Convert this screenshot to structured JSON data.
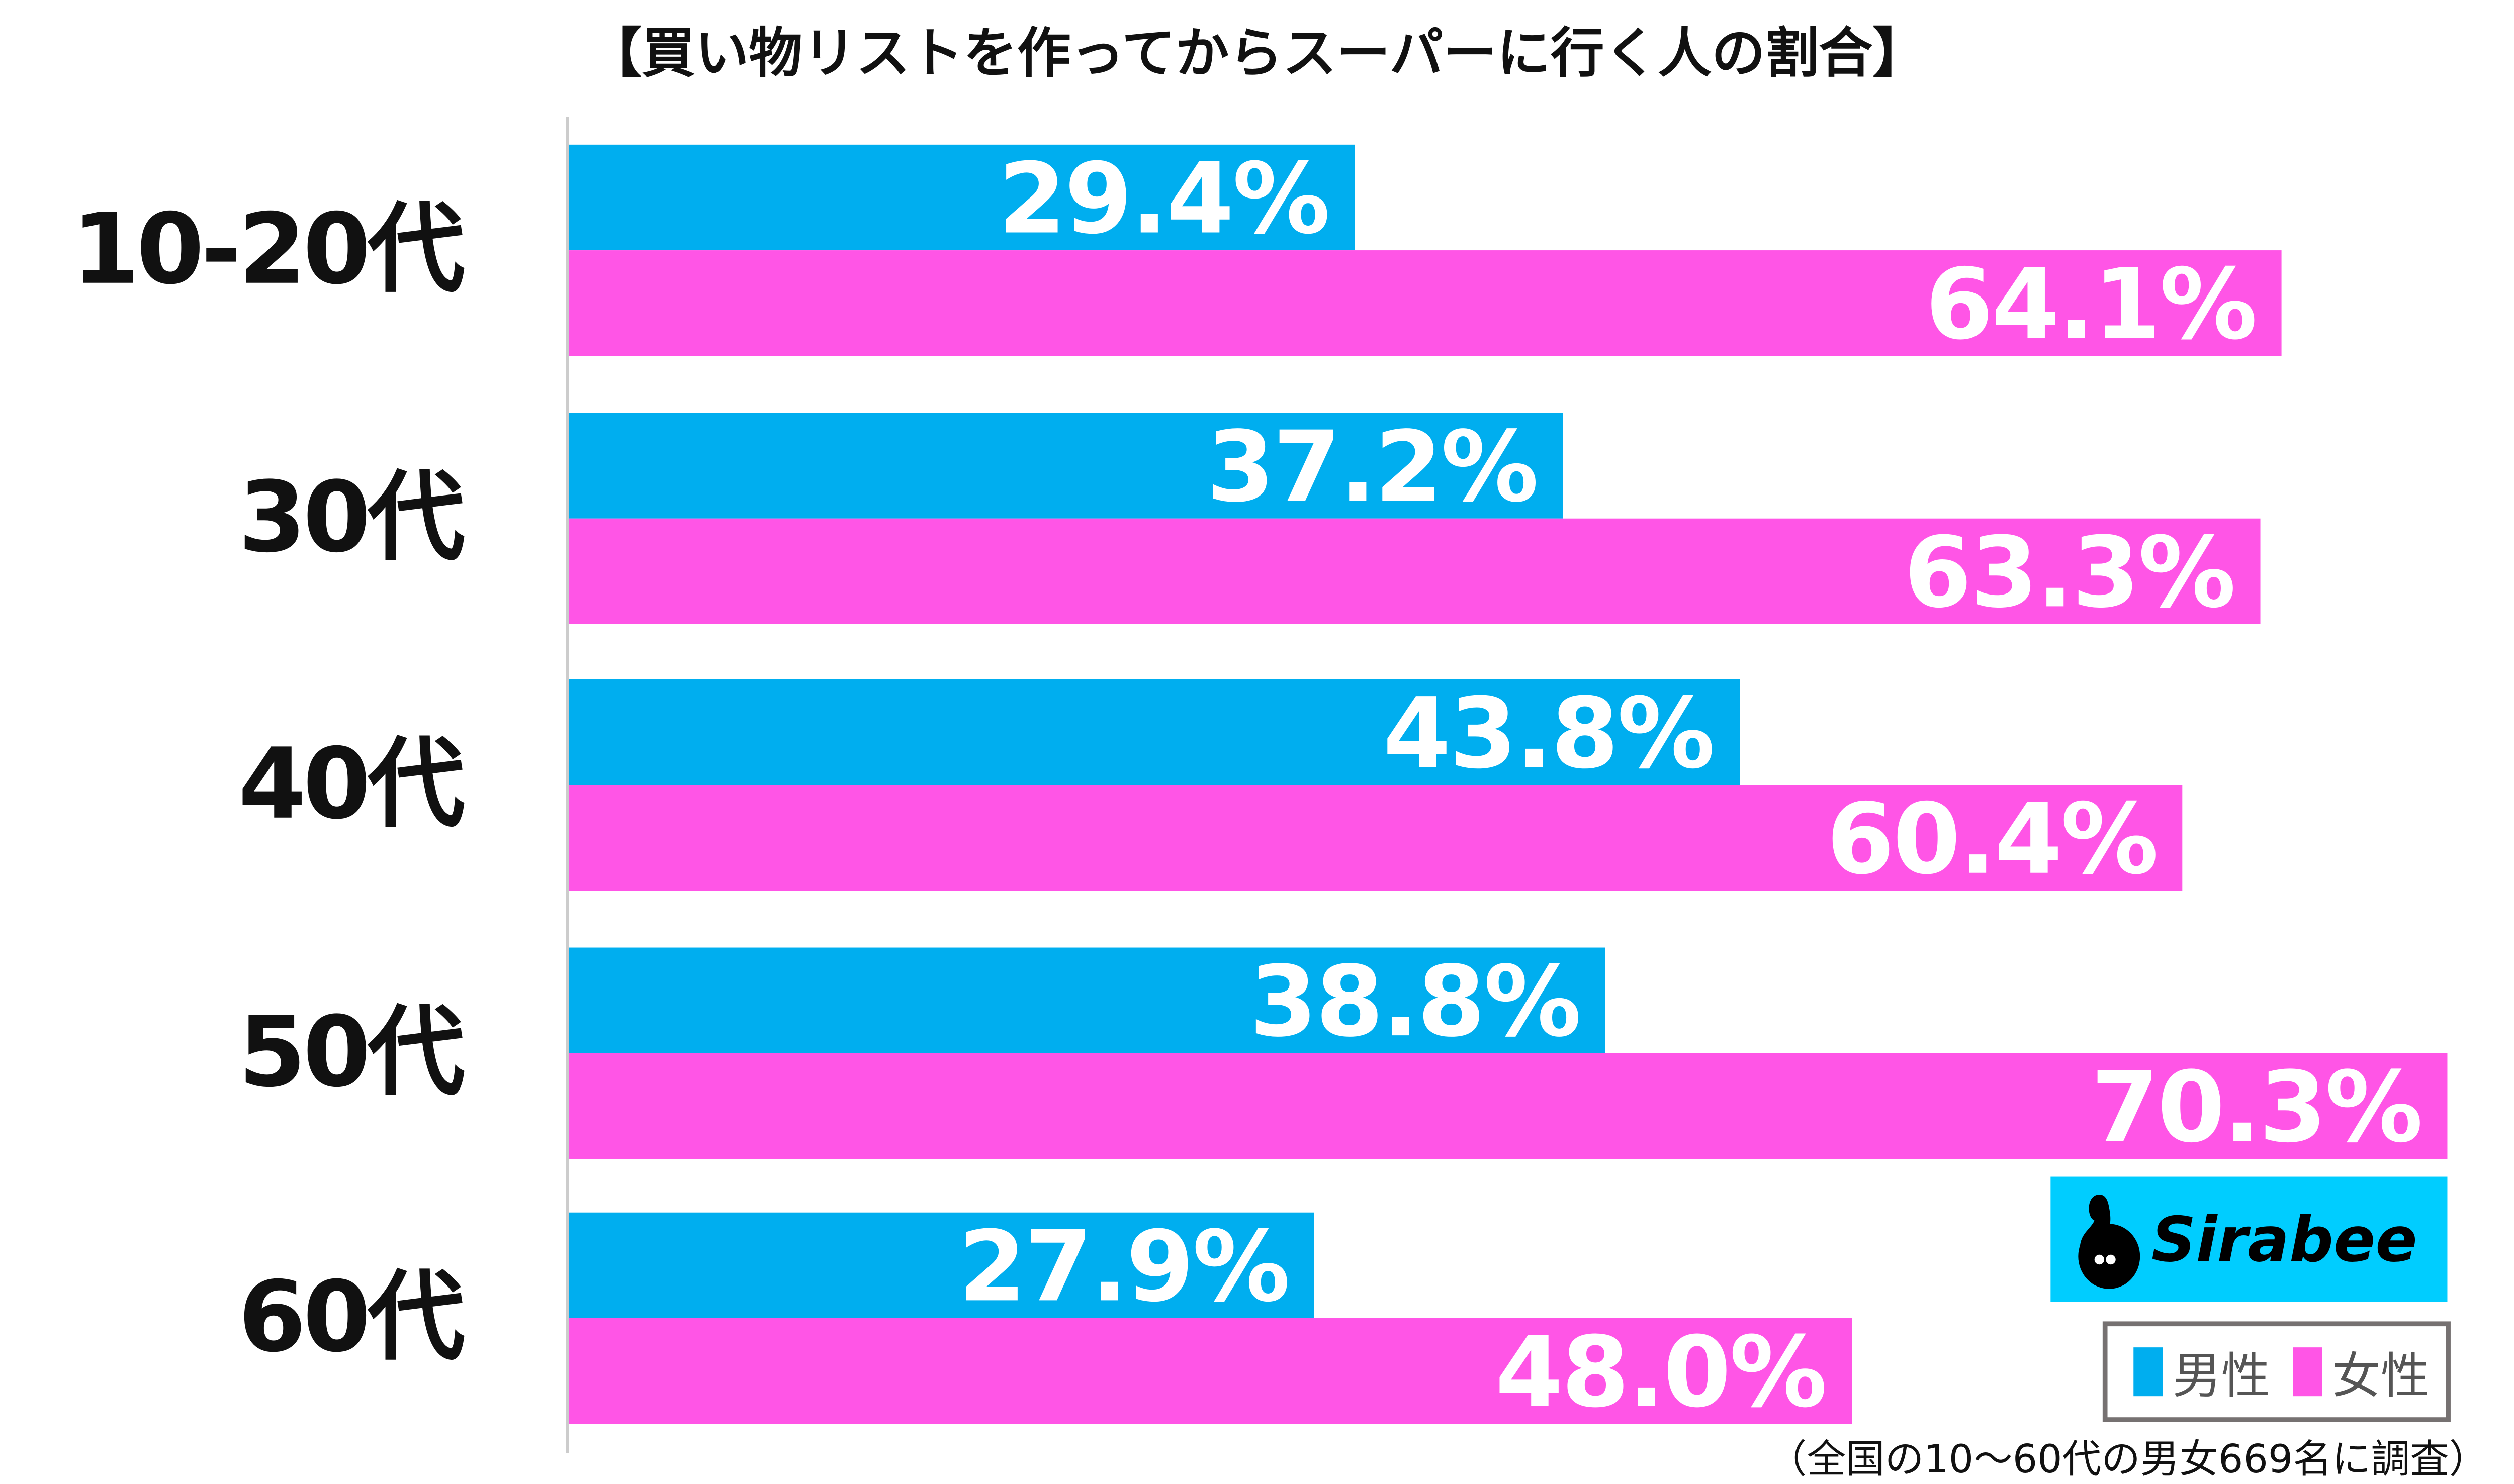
{
  "chart_data": {
    "type": "bar",
    "orientation": "horizontal",
    "title": "【買い物リストを作ってからスーパーに行く人の割合】",
    "categories": [
      "10-20代",
      "30代",
      "40代",
      "50代",
      "60代"
    ],
    "series": [
      {
        "name": "男性",
        "color": "#00aeef",
        "values": [
          29.4,
          37.2,
          43.8,
          38.8,
          27.9
        ],
        "labels": [
          "29.4%",
          "37.2%",
          "43.8%",
          "38.8%",
          "27.9%"
        ]
      },
      {
        "name": "女性",
        "color": "#ff55e6",
        "values": [
          64.1,
          63.3,
          60.4,
          70.3,
          48.0
        ],
        "labels": [
          "64.1%",
          "63.3%",
          "60.4%",
          "70.3%",
          "48.0%"
        ]
      }
    ],
    "xlim": [
      0,
      70.3
    ],
    "legend": {
      "placement": "bottom-right",
      "items": [
        "男性",
        "女性"
      ]
    },
    "footnote": "（全国の10〜60代の男女669名に調査）"
  },
  "logo": {
    "text": "Sirabee",
    "color": "#00cdff"
  }
}
